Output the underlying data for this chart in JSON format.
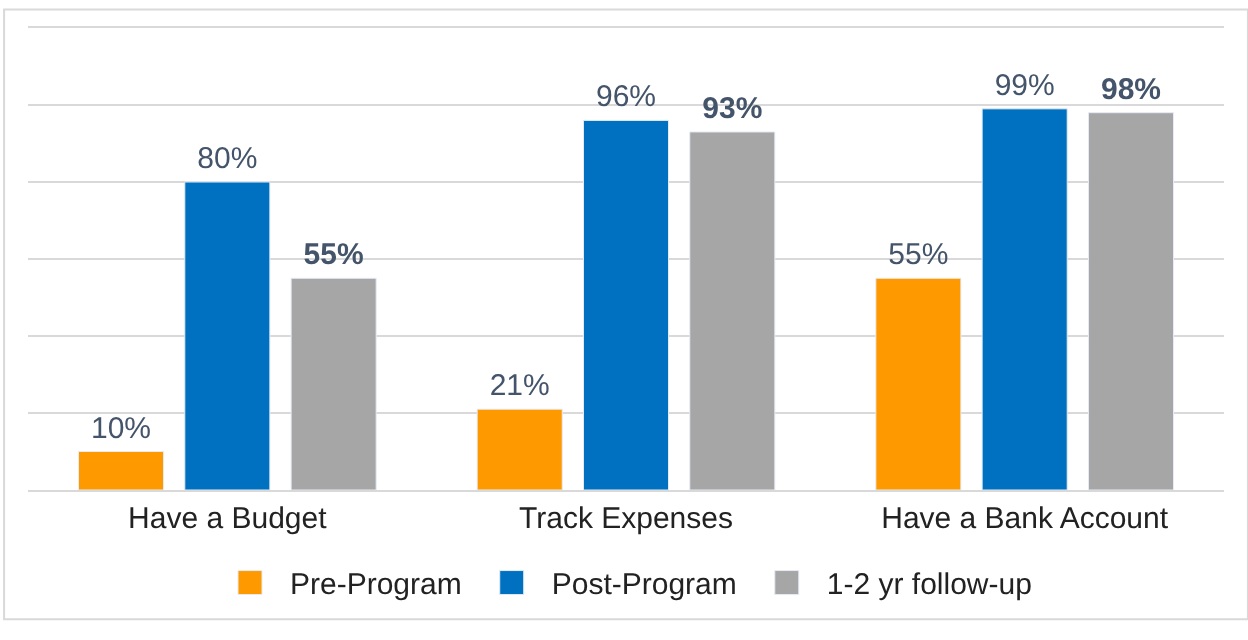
{
  "chart_data": {
    "type": "bar",
    "categories": [
      "Have a Budget",
      "Track Expenses",
      "Have a Bank Account"
    ],
    "series": [
      {
        "name": "Pre-Program",
        "color": "#ff9900",
        "values": [
          10,
          21,
          55
        ],
        "value_labels": [
          "10%",
          "21%",
          "55%"
        ]
      },
      {
        "name": "Post-Program",
        "color": "#0070c0",
        "values": [
          80,
          96,
          99
        ],
        "value_labels": [
          "80%",
          "96%",
          "99%"
        ]
      },
      {
        "name": "1-2 yr follow-up",
        "color": "#a6a6a6",
        "values": [
          55,
          93,
          98
        ],
        "value_labels": [
          "55%",
          "93%",
          "98%"
        ]
      }
    ],
    "ylim": [
      0,
      120
    ],
    "yticks": [
      {
        "value": 20,
        "label": null
      },
      {
        "value": 40,
        "label": null
      },
      {
        "value": 60,
        "label": null
      },
      {
        "value": 80,
        "label": null
      },
      {
        "value": 100,
        "label": null
      }
    ],
    "grid": "y",
    "legend": "bottom",
    "tick_labels": "x"
  }
}
